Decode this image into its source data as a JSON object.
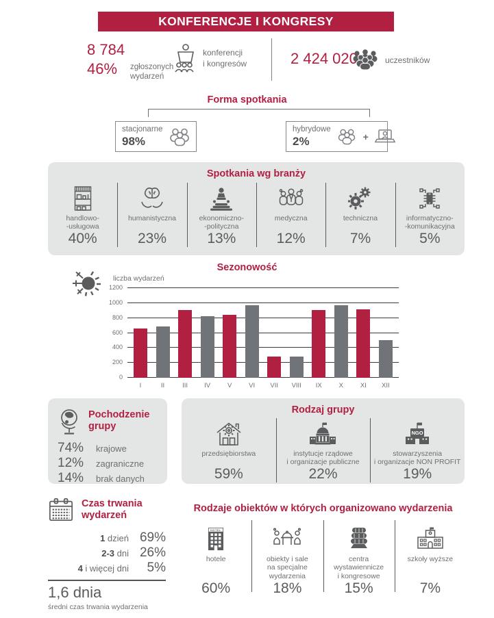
{
  "colors": {
    "accent": "#b11f41",
    "bar_red": "#b11f41",
    "bar_gray": "#707479",
    "icon_gray": "#5b5c5e",
    "text_dark": "#58595b",
    "text_gray": "#6d6e71",
    "panel_bg": "#e4e6e5"
  },
  "header": {
    "title": "KONFERENCJE I KONGRESY"
  },
  "stats": {
    "events": {
      "number": "8 784",
      "percent": "46%",
      "percent_caption": "zgłoszonych\nwydarzeń",
      "label": "konferencji\ni kongresów",
      "icon": "podium-speaker-audience-icon"
    },
    "participants": {
      "number": "2 424 020",
      "label": "uczestników",
      "icon": "crowd-icon"
    }
  },
  "meeting_form": {
    "title": "Forma spotkania",
    "plus_sign": "+",
    "options": [
      {
        "label": "stacjonarne",
        "value": "98%",
        "icon": "people-group-icon"
      },
      {
        "label": "hybrydowe",
        "value": "2%",
        "icon": "people-plus-laptop-icon"
      }
    ]
  },
  "industries": {
    "title": "Spotkania wg branży",
    "items": [
      {
        "icon": "shop-icon",
        "label": "handlowo-\n-usługowa",
        "value": "40%"
      },
      {
        "icon": "brain-hands-icon",
        "label": "humanistyczna",
        "value": "23%"
      },
      {
        "icon": "speaker-podium-icon",
        "label": "ekonomiczno-\n-polityczna",
        "value": "13%"
      },
      {
        "icon": "medical-team-icon",
        "label": "medyczna",
        "value": "12%"
      },
      {
        "icon": "gears-icon",
        "label": "techniczna",
        "value": "7%"
      },
      {
        "icon": "chip-icon",
        "label": "informatyczno-\n-komunikacyjna",
        "value": "5%"
      }
    ]
  },
  "chart_data": {
    "type": "bar",
    "title": "Sezonowość",
    "ylabel": "liczba wydarzeń",
    "xlabel": "",
    "categories": [
      "I",
      "II",
      "III",
      "IV",
      "V",
      "VI",
      "VII",
      "VIII",
      "IX",
      "X",
      "XI",
      "XII"
    ],
    "values": [
      660,
      690,
      910,
      820,
      840,
      970,
      285,
      285,
      905,
      975,
      915,
      505
    ],
    "ylim": [
      0,
      1200
    ],
    "yticks": [
      0,
      200,
      400,
      600,
      800,
      1000,
      1200
    ],
    "grid": true,
    "legend": false,
    "bar_colors": [
      "#b11f41",
      "#707479"
    ],
    "icon": "seasonality-sun-snowflake-icon"
  },
  "origin": {
    "title": "Pochodzenie\ngrupy",
    "icon": "globe-icon",
    "rows": [
      {
        "value": "74%",
        "label": "krajowe"
      },
      {
        "value": "12%",
        "label": "zagraniczne"
      },
      {
        "value": "14%",
        "label": "brak danych"
      }
    ]
  },
  "group_type": {
    "title": "Rodzaj grupy",
    "items": [
      {
        "icon": "company-house-gear-icon",
        "label": "przedsiębiorstwa",
        "value": "59%"
      },
      {
        "icon": "government-building-icon",
        "label": "instytucje rządowe\ni organizacje publiczne",
        "value": "22%"
      },
      {
        "icon": "ngo-flag-building-icon",
        "label": "stowarzyszenia\ni organizacje NON PROFIT",
        "value": "19%"
      }
    ]
  },
  "duration": {
    "title": "Czas trwania\nwydarzeń",
    "icon": "calendar-icon",
    "rows": [
      {
        "bold": "1",
        "rest": " dzień",
        "value": "69%"
      },
      {
        "bold": "2-3",
        "rest": " dni",
        "value": "26%"
      },
      {
        "bold": "4",
        "rest": " i więcej dni",
        "value": "5%"
      }
    ],
    "average": "1,6 dnia",
    "average_caption": "średni czas trwania wydarzenia"
  },
  "venues": {
    "title": "Rodzaje obiektów w których organizowano wydarzenia",
    "items": [
      {
        "icon": "hotel-icon",
        "label": "hotele",
        "value": "60%"
      },
      {
        "icon": "event-table-icon",
        "label": "obiekty i sale\nna specjalne\nwydarzenia",
        "value": "18%"
      },
      {
        "icon": "exhibition-center-icon",
        "label": "centra\nwystawiennicze\ni kongresowe",
        "value": "15%"
      },
      {
        "icon": "university-icon",
        "label": "szkoły wyższe",
        "value": "7%"
      }
    ]
  }
}
